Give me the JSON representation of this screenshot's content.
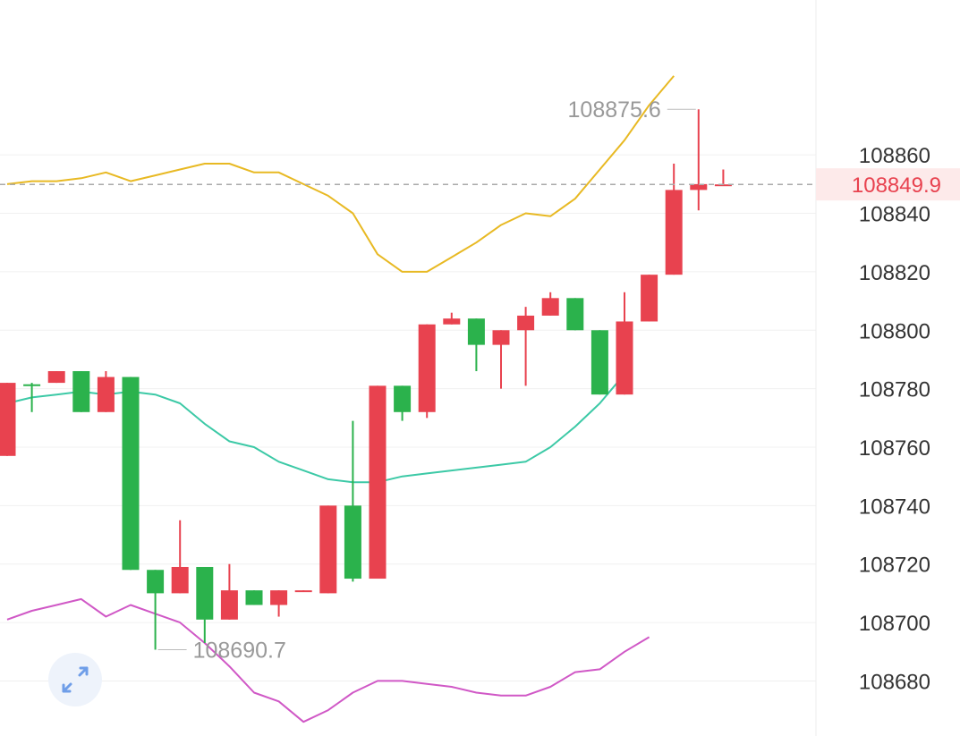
{
  "chart_data": {
    "type": "candlestick",
    "y_axis_ticks": [
      108860,
      108840,
      108820,
      108800,
      108780,
      108760,
      108740,
      108720,
      108700,
      108680
    ],
    "ylim": [
      108663,
      108898
    ],
    "current_price": 108849.9,
    "current_price_label": "108849.9",
    "high_label": "108875.6",
    "low_label": "108690.7",
    "colors": {
      "up": "#e8424f",
      "down": "#2bb24c",
      "upper_band": "#e8b923",
      "middle_band": "#3cc9a6",
      "lower_band": "#d058c6",
      "grid": "#f0f0f0",
      "price_line": "#aaaaaa",
      "price_tag_bg": "#fdeaea",
      "price_tag_text": "#e8424f"
    },
    "candles": [
      {
        "o": 108757,
        "c": 108782,
        "h": 108782,
        "l": 108757
      },
      {
        "o": 108781.5,
        "c": 108781,
        "h": 108782,
        "l": 108772
      },
      {
        "o": 108782,
        "c": 108786,
        "h": 108786,
        "l": 108782
      },
      {
        "o": 108786,
        "c": 108772,
        "h": 108786,
        "l": 108772
      },
      {
        "o": 108772,
        "c": 108784,
        "h": 108786,
        "l": 108772
      },
      {
        "o": 108784,
        "c": 108718,
        "h": 108784,
        "l": 108718
      },
      {
        "o": 108718,
        "c": 108710,
        "h": 108718,
        "l": 108690.7
      },
      {
        "o": 108710,
        "c": 108719,
        "h": 108735,
        "l": 108710
      },
      {
        "o": 108719,
        "c": 108701,
        "h": 108719,
        "l": 108693
      },
      {
        "o": 108701,
        "c": 108711,
        "h": 108720,
        "l": 108701
      },
      {
        "o": 108711,
        "c": 108706,
        "h": 108711,
        "l": 108706
      },
      {
        "o": 108706,
        "c": 108711,
        "h": 108711,
        "l": 108702
      },
      {
        "o": 108710.5,
        "c": 108711,
        "h": 108711,
        "l": 108710.5
      },
      {
        "o": 108710,
        "c": 108740,
        "h": 108740,
        "l": 108710
      },
      {
        "o": 108740,
        "c": 108715,
        "h": 108769,
        "l": 108714
      },
      {
        "o": 108715,
        "c": 108781,
        "h": 108781,
        "l": 108715
      },
      {
        "o": 108781,
        "c": 108772,
        "h": 108781,
        "l": 108769
      },
      {
        "o": 108772,
        "c": 108802,
        "h": 108802,
        "l": 108770
      },
      {
        "o": 108802,
        "c": 108804,
        "h": 108806,
        "l": 108802
      },
      {
        "o": 108804,
        "c": 108795,
        "h": 108804,
        "l": 108786
      },
      {
        "o": 108795,
        "c": 108800,
        "h": 108800,
        "l": 108780
      },
      {
        "o": 108800,
        "c": 108805,
        "h": 108808,
        "l": 108781
      },
      {
        "o": 108805,
        "c": 108811,
        "h": 108813,
        "l": 108805
      },
      {
        "o": 108811,
        "c": 108800,
        "h": 108811,
        "l": 108800
      },
      {
        "o": 108800,
        "c": 108778,
        "h": 108800,
        "l": 108778
      },
      {
        "o": 108778,
        "c": 108803,
        "h": 108813,
        "l": 108778
      },
      {
        "o": 108803,
        "c": 108819,
        "h": 108819,
        "l": 108803
      },
      {
        "o": 108819,
        "c": 108848,
        "h": 108857,
        "l": 108819
      },
      {
        "o": 108848,
        "c": 108850,
        "h": 108875.6,
        "l": 108841
      },
      {
        "o": 108849.9,
        "c": 108849.9,
        "h": 108855,
        "l": 108849.9
      }
    ],
    "upper_band": [
      108850,
      108851,
      108851,
      108852,
      108854,
      108851,
      108853,
      108855,
      108857,
      108857,
      108854,
      108854,
      108850,
      108846,
      108840,
      108826,
      108820,
      108820,
      108825,
      108830,
      108836,
      108840,
      108839,
      108845,
      108855,
      108865,
      108877,
      108887
    ],
    "middle_band": [
      108775,
      108777,
      108778,
      108779,
      108778,
      108779,
      108778,
      108775,
      108768,
      108762,
      108760,
      108755,
      108752,
      108749,
      108748,
      108748,
      108750,
      108751,
      108752,
      108753,
      108754,
      108755,
      108760,
      108767,
      108775,
      108785
    ],
    "lower_band": [
      108701,
      108704,
      108706,
      108708,
      108702,
      108706,
      108703,
      108700,
      108693,
      108685,
      108676,
      108673,
      108666,
      108670,
      108676,
      108680,
      108680,
      108679,
      108678,
      108676,
      108675,
      108675,
      108678,
      108683,
      108684,
      108690,
      108695
    ]
  }
}
